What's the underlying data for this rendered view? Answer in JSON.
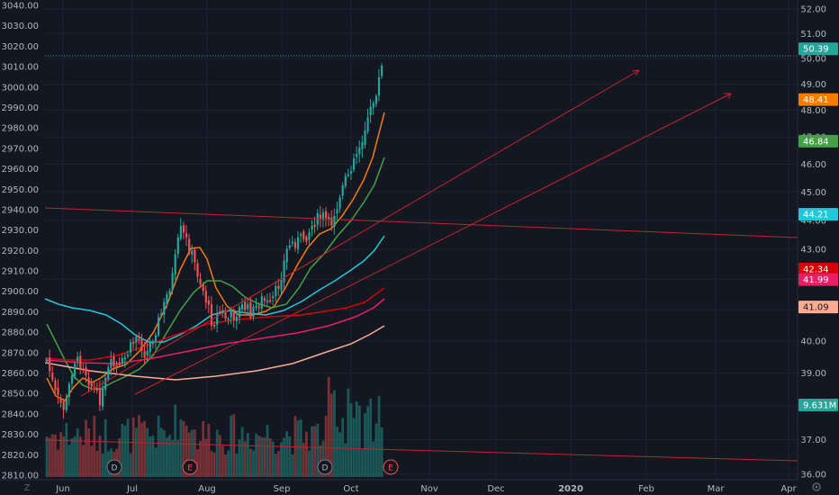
{
  "colors": {
    "background": "#131722",
    "grid": "#1e222d",
    "axis_text": "#b2b5be",
    "up": "#26a69a",
    "down": "#ef5350",
    "trend": "#c4232d",
    "price_line": "#26a69a"
  },
  "left_axis": {
    "ticks": [
      "3040.00",
      "3030.00",
      "3020.00",
      "3010.00",
      "3000.00",
      "2990.00",
      "2980.00",
      "2970.00",
      "2960.00",
      "2950.00",
      "2940.00",
      "2930.00",
      "2920.00",
      "2910.00",
      "2900.00",
      "2890.00",
      "2880.00",
      "2870.00",
      "2860.00",
      "2850.00",
      "2840.00",
      "2830.00",
      "2820.00",
      "2810.00"
    ],
    "range": [
      2810,
      3040
    ]
  },
  "right_axis": {
    "ticks": [
      "52.00",
      "51.00",
      "50.00",
      "49.00",
      "48.00",
      "47.00",
      "46.00",
      "45.00",
      "44.00",
      "43.00",
      "42.00",
      "41.00",
      "40.00",
      "39.00",
      "38.00",
      "37.00",
      "36.00"
    ],
    "range": [
      36,
      52
    ],
    "scale": "log",
    "labels": [
      {
        "text": "50.39",
        "value": 50.39,
        "color": "#26a69a"
      },
      {
        "text": "48.41",
        "value": 48.41,
        "color": "#f57c00"
      },
      {
        "text": "46.84",
        "value": 46.84,
        "color": "#43a047"
      },
      {
        "text": "44.21",
        "value": 44.21,
        "color": "#26c6da"
      },
      {
        "text": "42.34",
        "value": 42.34,
        "color": "#d50000"
      },
      {
        "text": "41.99",
        "value": 41.99,
        "color": "#e91e63"
      },
      {
        "text": "41.09",
        "value": 41.09,
        "color": "#ffab91"
      },
      {
        "text": "9.631M",
        "value": 38.1,
        "color": "#26a69a"
      }
    ]
  },
  "time_axis": {
    "labels": [
      {
        "text": "Jun",
        "bold": false
      },
      {
        "text": "Jul",
        "bold": false
      },
      {
        "text": "Aug",
        "bold": false
      },
      {
        "text": "Sep",
        "bold": false
      },
      {
        "text": "Oct",
        "bold": false
      },
      {
        "text": "Nov",
        "bold": false
      },
      {
        "text": "Dec",
        "bold": false
      },
      {
        "text": "2020",
        "bold": true
      },
      {
        "text": "Feb",
        "bold": false
      },
      {
        "text": "Mar",
        "bold": false
      },
      {
        "text": "Apr",
        "bold": false
      }
    ]
  },
  "events": [
    {
      "text": "D",
      "type": "dividend"
    },
    {
      "text": "E",
      "type": "earnings"
    },
    {
      "text": "D",
      "type": "dividend"
    },
    {
      "text": "E",
      "type": "earnings"
    }
  ],
  "icons": {
    "left": "tradingview-logo-icon",
    "right": "settings-gear-icon"
  },
  "chart_data": {
    "type": "candlestick",
    "last_price": 50.39,
    "price_line_value": 50.39,
    "moving_averages": [
      {
        "color": "#f57c00",
        "last": 48.41
      },
      {
        "color": "#43a047",
        "last": 46.84
      },
      {
        "color": "#26c6da",
        "last": 44.21
      },
      {
        "color": "#d50000",
        "last": 42.34
      },
      {
        "color": "#e91e63",
        "last": 41.99
      },
      {
        "color": "#ffab91",
        "last": 41.09
      }
    ],
    "volume_last": "9.631M"
  }
}
